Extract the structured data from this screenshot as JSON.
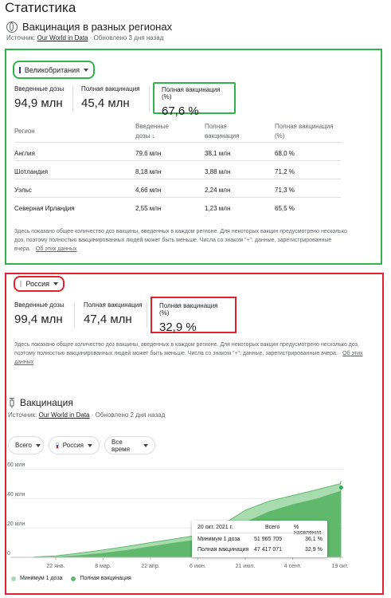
{
  "page": {
    "title": "Статистика"
  },
  "section": {
    "heading": "Вакцинация в разных регионах",
    "source_label": "Источник:",
    "source_link": "Our World in Data",
    "updated": " · Обновлено 3 дня назад"
  },
  "uk": {
    "country": "Великобритания",
    "stats": [
      {
        "label": "Введенные дозы",
        "value": "94,9 млн"
      },
      {
        "label": "Полная вакцинация",
        "value": "45,4 млн"
      },
      {
        "label": "Полная вакцинация (%)",
        "value": "67,6 %"
      }
    ],
    "table": {
      "headers": [
        "Регион",
        "Введенные дозы",
        "Полная вакцинация",
        "Полная вакцинация (%)"
      ],
      "sort_arrow": "↓",
      "rows": [
        [
          "Англия",
          "79,6 млн",
          "38,1 млн",
          "68,0 %"
        ],
        [
          "Шотландия",
          "8,18 млн",
          "3,88 млн",
          "71,2 %"
        ],
        [
          "Уэльс",
          "4,66 млн",
          "2,24 млн",
          "71,3 %"
        ],
        [
          "Северная Ирландия",
          "2,55 млн",
          "1,23 млн",
          "65,5 %"
        ]
      ]
    },
    "note": "Здесь показано общее количество доз вакцины, введенных в каждом регионе. Для некоторых вакцин предусмотрено несколько доз, поэтому полностью вакцинированных людей может быть меньше. Числа со знаком \"+\": данные, зарегистрированные вчера.",
    "note_sep": " · ",
    "note_link": "Об этих данных"
  },
  "ru": {
    "country": "Россия",
    "stats": [
      {
        "label": "Введенные дозы",
        "value": "99,4 млн"
      },
      {
        "label": "Полная вакцинация",
        "value": "47,4 млн"
      },
      {
        "label": "Полная вакцинация (%)",
        "value": "32,9 %"
      }
    ],
    "note": "Здесь показано общее количество доз вакцины, введенных в каждом регионе. Для некоторых вакцин предусмотрено несколько доз, поэтому полностью вакцинированных людей может быть меньше. Числа со знаком \"+\": данные, зарегистрированные вчера.",
    "note_sep": " · ",
    "note_link": "Об этих данных"
  },
  "vacc": {
    "heading": "Вакцинация",
    "source_label": "Источник:",
    "source_link": "Our World in Data",
    "updated": " · Обновлено 2 дня назад",
    "filters": {
      "scope": "Всего",
      "country": "Россия",
      "period": "Все время"
    }
  },
  "colors": {
    "min_dose": "#a8dcaf",
    "full": "#5fb86c",
    "marker": "#34a853"
  },
  "chart_data": {
    "type": "area",
    "x": [
      "2021-01-01",
      "2021-01-22",
      "2021-02-15",
      "2021-03-08",
      "2021-03-31",
      "2021-04-22",
      "2021-05-15",
      "2021-06-06",
      "2021-06-29",
      "2021-07-21",
      "2021-08-12",
      "2021-09-04",
      "2021-09-27",
      "2021-10-19",
      "2021-10-20"
    ],
    "series": [
      {
        "name": "Минимум 1 доза",
        "values": [
          0.2,
          1.0,
          3.0,
          5.0,
          7.5,
          10.0,
          12.5,
          15.0,
          22.0,
          32.0,
          38.0,
          42.0,
          46.0,
          50.0,
          51.97
        ]
      },
      {
        "name": "Полная вакцинация",
        "values": [
          0.05,
          0.4,
          1.5,
          3.0,
          5.0,
          7.5,
          10.0,
          12.0,
          17.0,
          24.0,
          31.0,
          36.0,
          40.0,
          45.0,
          47.42
        ]
      }
    ],
    "ylim": [
      0,
      65
    ],
    "yticks": [
      0,
      20,
      40,
      60
    ],
    "ytick_labels": [
      "0",
      "20 млн",
      "40 млн",
      "60 млн"
    ],
    "xtick_labels": [
      "22 янв.",
      "8 мар.",
      "22 апр.",
      "6 июн.",
      "21 июл.",
      "4 сент.",
      "19 окт."
    ],
    "xtick_dates": [
      "2021-01-22",
      "2021-03-08",
      "2021-04-22",
      "2021-06-06",
      "2021-07-21",
      "2021-09-04",
      "2021-10-19"
    ],
    "xrange": [
      "2020-12-10",
      "2021-10-22"
    ],
    "legend": [
      "Минимум 1 доза",
      "Полная вакцинация"
    ],
    "legend_position": "bottom-left",
    "grid": true,
    "tooltip": {
      "date": "20 окт. 2021 г.",
      "col_total": "Всего",
      "col_pct": "% населения",
      "rows": [
        {
          "label": "Минимум 1 доза",
          "total": "51 965 705",
          "pct": "36,1 %"
        },
        {
          "label": "Полная вакцинация",
          "total": "47 417 071",
          "pct": "32,9 %"
        }
      ]
    }
  }
}
